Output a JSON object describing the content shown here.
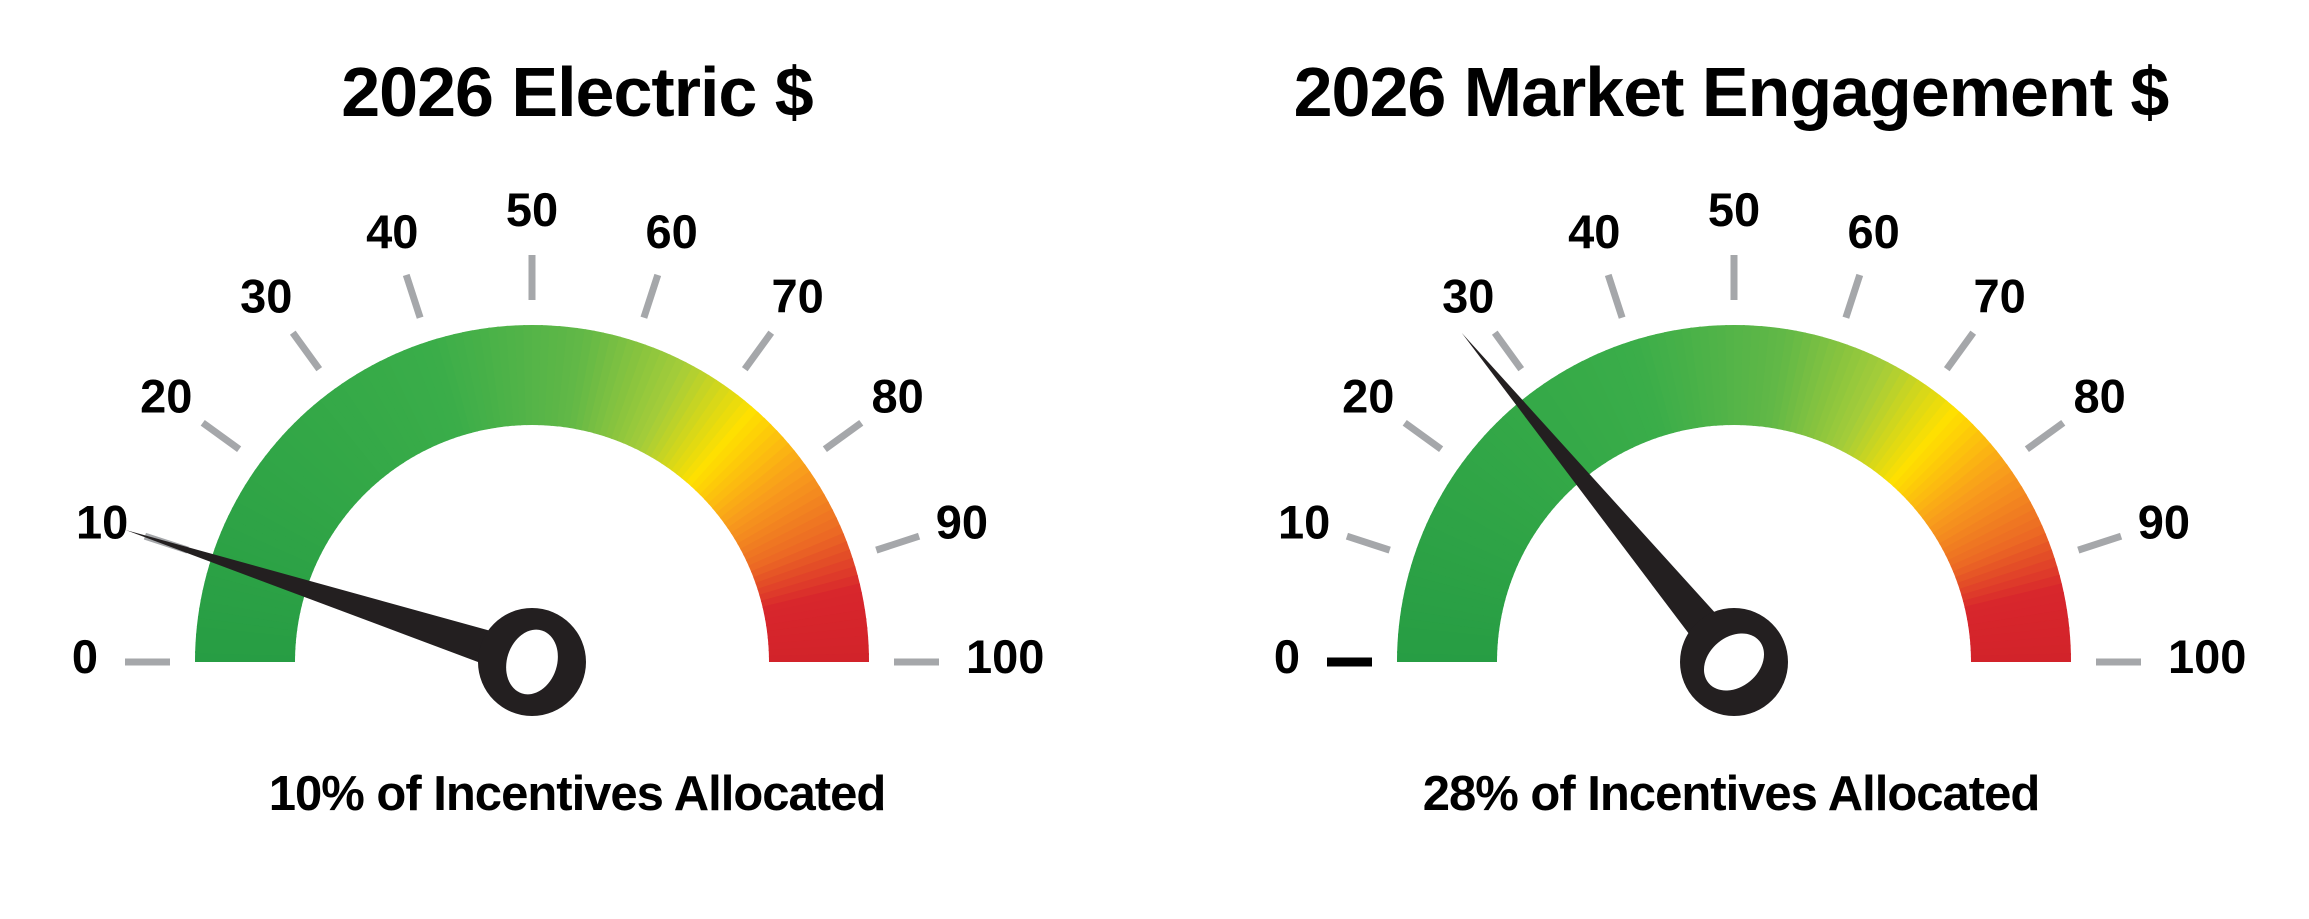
{
  "page": {
    "background_color": "#ffffff",
    "text_color": "#000000"
  },
  "chart_data": [
    {
      "type": "gauge",
      "title": "2026 Electric $",
      "caption": "10% of Incentives Allocated",
      "value": 10,
      "min": 0,
      "max": 100,
      "tick_step": 10,
      "tick_labels": [
        "0",
        "10",
        "20",
        "30",
        "40",
        "50",
        "60",
        "70",
        "80",
        "90",
        "100"
      ],
      "tick_color": "#a5a7aa",
      "zero_tick": {
        "color": "#a5a7aa",
        "width": 7
      },
      "label_color": "#000000",
      "needle_color": "#231f20",
      "hub_center_color": "#ffffff",
      "arc_gradient_stops": [
        {
          "value": 0,
          "color": "#279d44"
        },
        {
          "value": 40,
          "color": "#3aad49"
        },
        {
          "value": 55,
          "color": "#62b847"
        },
        {
          "value": 65,
          "color": "#a5cd39"
        },
        {
          "value": 73,
          "color": "#ffe000"
        },
        {
          "value": 80,
          "color": "#f9a01b"
        },
        {
          "value": 87,
          "color": "#ec6a24"
        },
        {
          "value": 93,
          "color": "#d8262c"
        },
        {
          "value": 100,
          "color": "#d2232a"
        }
      ]
    },
    {
      "type": "gauge",
      "title": "2026 Market Engagement $",
      "caption": "28% of Incentives Allocated",
      "value": 28,
      "min": 0,
      "max": 100,
      "tick_step": 10,
      "tick_labels": [
        "0",
        "10",
        "20",
        "30",
        "40",
        "50",
        "60",
        "70",
        "80",
        "90",
        "100"
      ],
      "tick_color": "#a5a7aa",
      "zero_tick": {
        "color": "#000000",
        "width": 9
      },
      "label_color": "#000000",
      "needle_color": "#231f20",
      "hub_center_color": "#ffffff",
      "arc_gradient_stops": [
        {
          "value": 0,
          "color": "#279d44"
        },
        {
          "value": 40,
          "color": "#3aad49"
        },
        {
          "value": 55,
          "color": "#62b847"
        },
        {
          "value": 65,
          "color": "#a5cd39"
        },
        {
          "value": 73,
          "color": "#ffe000"
        },
        {
          "value": 80,
          "color": "#f9a01b"
        },
        {
          "value": 87,
          "color": "#ec6a24"
        },
        {
          "value": 93,
          "color": "#d8262c"
        },
        {
          "value": 100,
          "color": "#d2232a"
        }
      ]
    }
  ]
}
